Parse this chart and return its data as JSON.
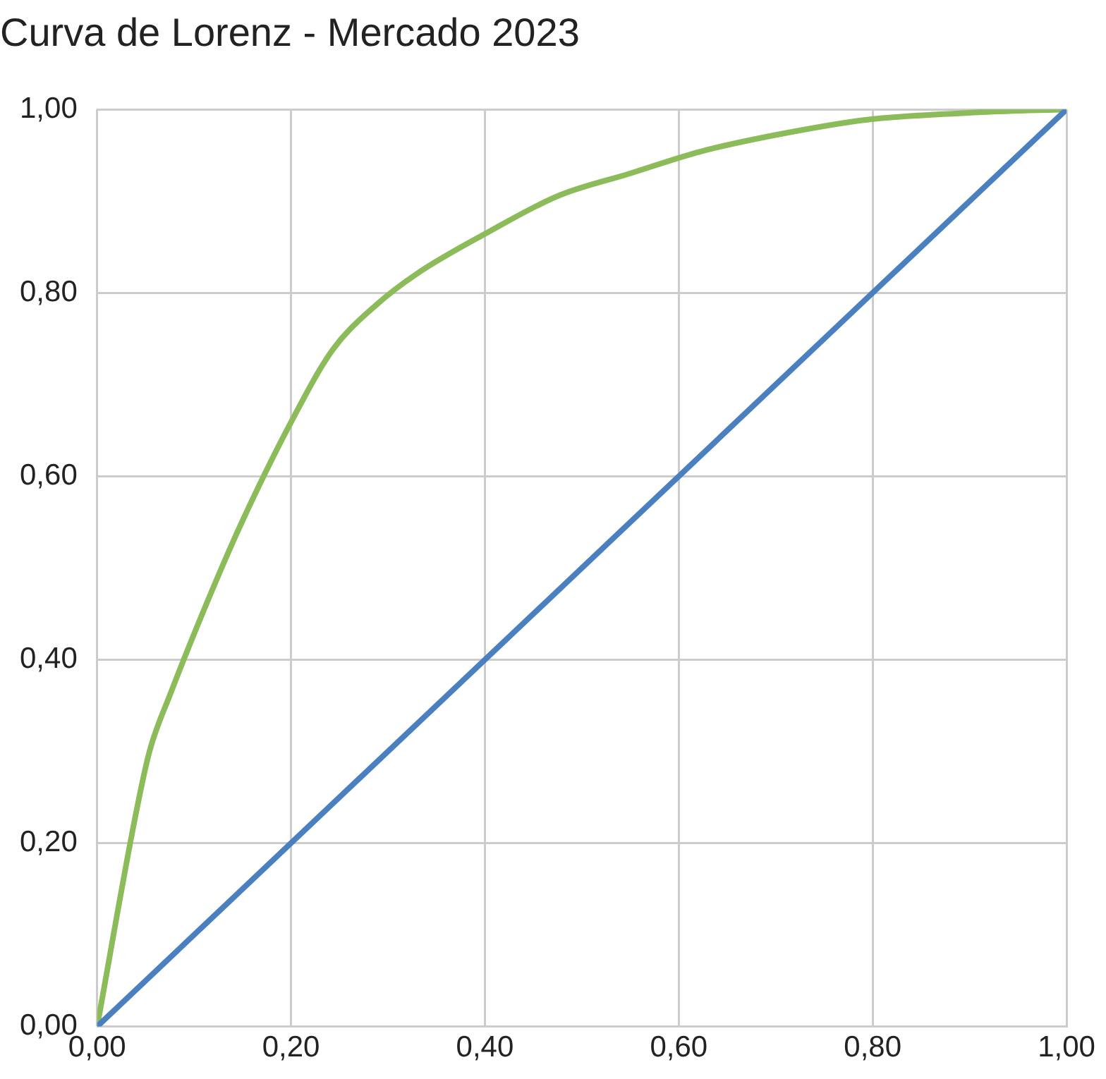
{
  "chart_data": {
    "type": "line",
    "title": "Curva de Lorenz - Mercado 2023",
    "series": [
      {
        "color": "#8cbb5a",
        "x": [
          0,
          0.039,
          0.054,
          0.076,
          0.112,
          0.148,
          0.2,
          0.243,
          0.287,
          0.33,
          0.403,
          0.476,
          0.549,
          0.622,
          0.709,
          0.796,
          0.913,
          1
        ],
        "values": [
          0,
          0.227,
          0.3,
          0.364,
          0.459,
          0.547,
          0.659,
          0.738,
          0.786,
          0.821,
          0.866,
          0.906,
          0.93,
          0.954,
          0.974,
          0.989,
          0.997,
          1
        ]
      },
      {
        "color": "#4a7fc0",
        "x": [
          0,
          1
        ],
        "values": [
          0,
          1
        ]
      }
    ],
    "xlim": [
      0,
      1
    ],
    "ylim": [
      0,
      1
    ],
    "xticks": [
      {
        "value": 0,
        "label": "0,00"
      },
      {
        "value": 0.2,
        "label": "0,20"
      },
      {
        "value": 0.4,
        "label": "0,40"
      },
      {
        "value": 0.6,
        "label": "0,60"
      },
      {
        "value": 0.8,
        "label": "0,80"
      },
      {
        "value": 1,
        "label": "1,00"
      }
    ],
    "yticks": [
      {
        "value": 0,
        "label": "0,00"
      },
      {
        "value": 0.2,
        "label": "0,20"
      },
      {
        "value": 0.4,
        "label": "0,40"
      },
      {
        "value": 0.6,
        "label": "0,60"
      },
      {
        "value": 0.8,
        "label": "0,80"
      },
      {
        "value": 1,
        "label": "1,00"
      }
    ],
    "grid": true,
    "marker": "none",
    "line_style": "solid",
    "legend": false
  }
}
